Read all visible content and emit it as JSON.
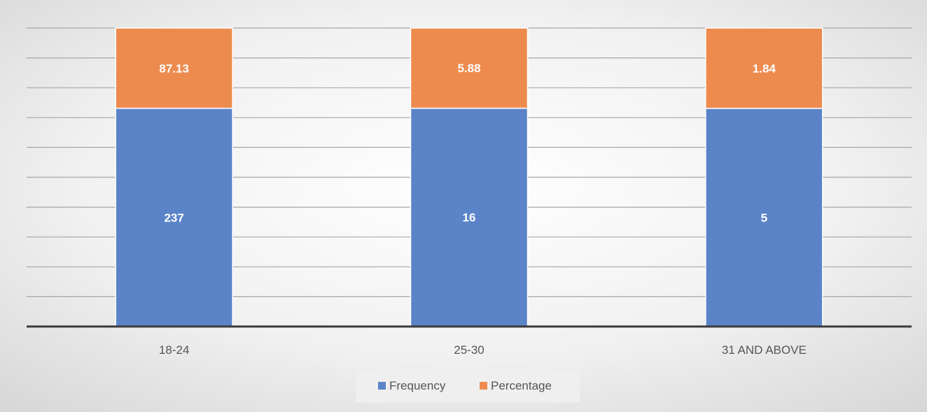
{
  "chart_data": {
    "type": "bar",
    "stacked": "percent",
    "categories": [
      "18-24",
      "25-30",
      "31 AND ABOVE"
    ],
    "series": [
      {
        "name": "Frequency",
        "values": [
          237,
          16,
          5
        ],
        "labels": [
          "237",
          "16",
          "5"
        ],
        "color": "#5b84c8"
      },
      {
        "name": "Percentage",
        "values": [
          87.13,
          5.88,
          1.84
        ],
        "labels": [
          "87.13",
          "5.88",
          "1.84"
        ],
        "color": "#ed8b4e"
      }
    ],
    "grid": true,
    "legend": "bottom",
    "title": "",
    "xlabel": "",
    "ylabel": ""
  }
}
